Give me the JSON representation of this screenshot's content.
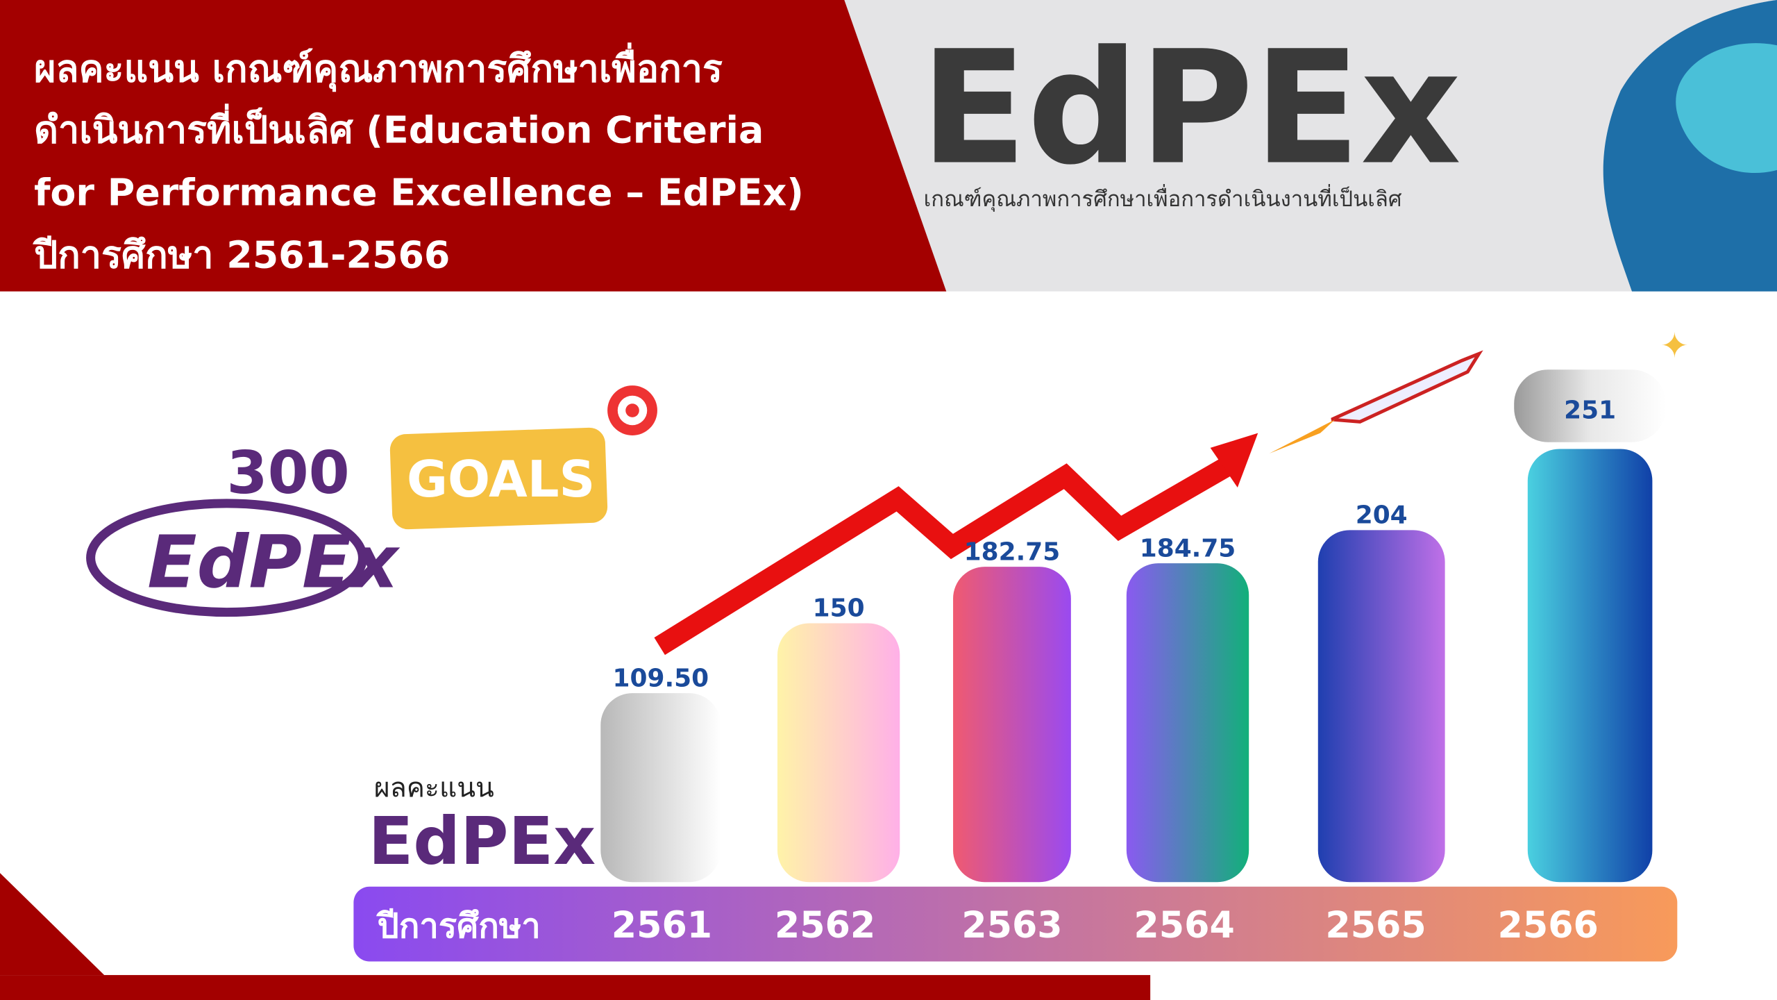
{
  "chart_data": {
    "type": "bar",
    "title": [
      "ผลคะแนน เกณฑ์คุณภาพการศึกษาเพื่อการ",
      "ดำเนินการที่เป็นเลิศ (Education Criteria",
      "for Performance Excellence – EdPEx)",
      "ปีการศึกษา 2561-2566"
    ],
    "header_logo": "EdPEx",
    "header_logo_subtitle": "เกณฑ์คุณภาพการศึกษาเพื่อการดำเนินงานที่เป็นเลิศ",
    "goal": 300,
    "goal_label": "GOALS",
    "goal_logo": "EdPEx",
    "y_label": "ผลคะแนน",
    "brand": "EdPEx",
    "x_label": "ปีการศึกษา",
    "categories": [
      "2561",
      "2562",
      "2563",
      "2564",
      "2565",
      "2566"
    ],
    "values": [
      109.5,
      150,
      182.75,
      184.75,
      204,
      251
    ],
    "value_labels": [
      "109.50",
      "150",
      "182.75",
      "184.75",
      "204",
      "251"
    ],
    "colors": [
      [
        "#b8b8b8",
        "#ffffff"
      ],
      [
        "#fff3a8",
        "#ffb0e8"
      ],
      [
        "#f05a70",
        "#9a4af0"
      ],
      [
        "#8a5af0",
        "#12b07a"
      ],
      [
        "#1f3fb0",
        "#c070e8"
      ],
      [
        "#4ad0e0",
        "#1040a8"
      ]
    ]
  }
}
